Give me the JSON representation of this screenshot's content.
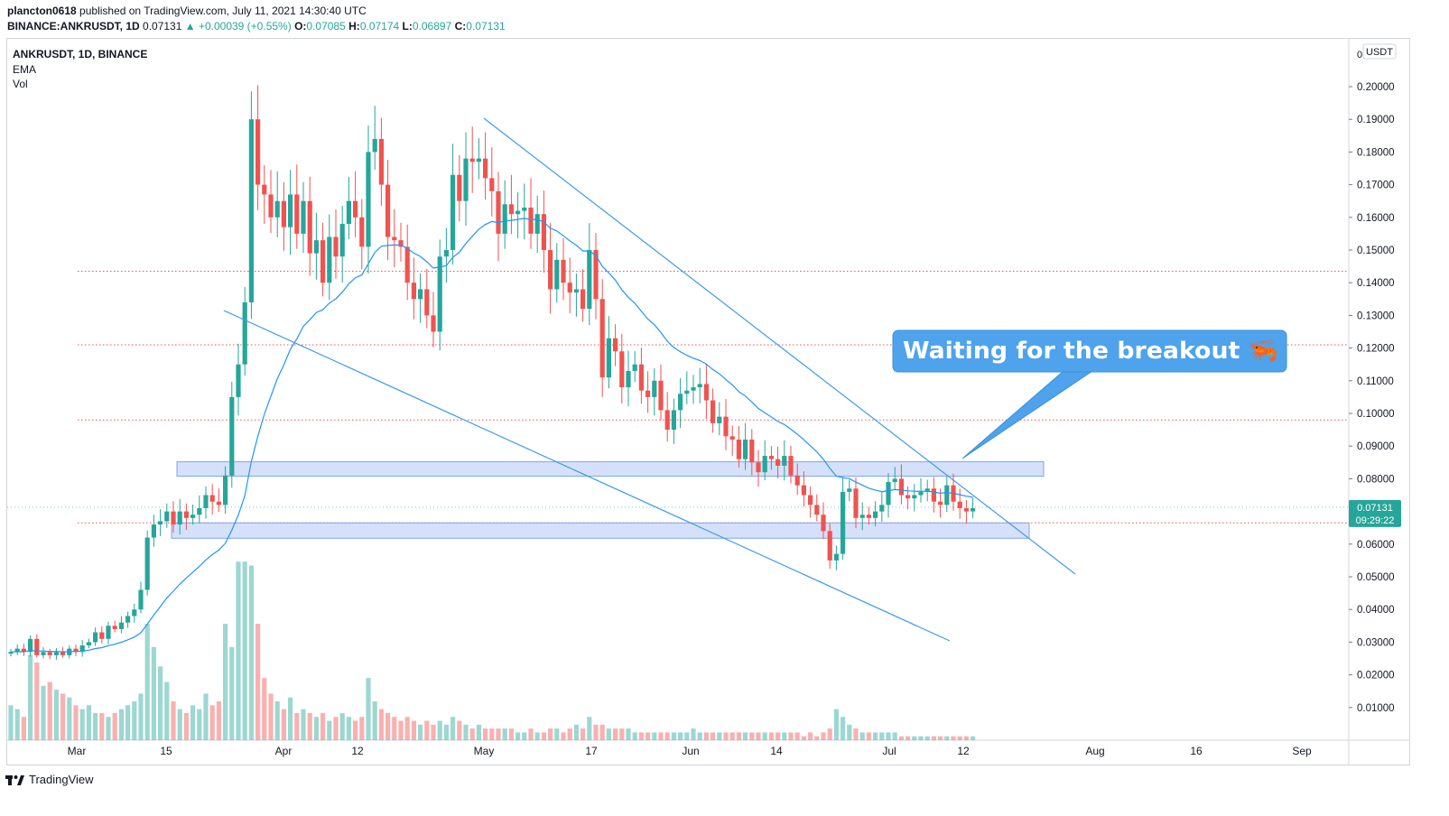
{
  "header": {
    "author": "plancton0618",
    "published_text": "published on TradingView.com, July 11, 2021 14:30:40 UTC",
    "symbol_full": "BINANCE:ANKRUSDT, 1D",
    "last": "0.07131",
    "change": "▲ +0.00039 (+0.55%)",
    "o_label": "O:",
    "o_value": "0.07085",
    "h_label": "H:",
    "h_value": "0.07174",
    "l_label": "L:",
    "l_value": "0.06897",
    "c_label": "C:",
    "c_value": "0.07131"
  },
  "legend": {
    "symbol": "ANKRUSDT, 1D, BINANCE",
    "ema": "EMA",
    "vol": "Vol"
  },
  "price_axis": {
    "currency": "USDT",
    "zero_label": "0",
    "ticks": [
      "0.20000",
      "0.19000",
      "0.18000",
      "0.17000",
      "0.16000",
      "0.15000",
      "0.14000",
      "0.13000",
      "0.12000",
      "0.11000",
      "0.10000",
      "0.09000",
      "0.08000",
      "0.07000",
      "0.06000",
      "0.05000",
      "0.04000",
      "0.03000",
      "0.02000",
      "0.01000"
    ],
    "current_price": "0.07131",
    "countdown": "09:29:22"
  },
  "time_axis": {
    "ticks": [
      "Mar",
      "15",
      "Apr",
      "12",
      "May",
      "17",
      "Jun",
      "14",
      "Jul",
      "12",
      "Aug",
      "16",
      "Sep"
    ]
  },
  "annotation": {
    "text": "Waiting for the breakout 🦐"
  },
  "footer": {
    "brand": "TradingView"
  },
  "colors": {
    "up": "#26a69a",
    "down": "#ef5350",
    "ema": "#2196f3",
    "trendline": "#3d9be9",
    "zone": "#b3c9f5",
    "hline": "#ef5350",
    "callout": "#4ea3ec"
  },
  "chart_data": {
    "type": "candlestick",
    "symbol": "ANKRUSDT",
    "interval": "1D",
    "exchange": "BINANCE",
    "series": [
      {
        "name": "EMA"
      },
      {
        "name": "Vol"
      }
    ],
    "x_ticks": [
      "Mar",
      "15",
      "Apr",
      "12",
      "May",
      "17",
      "Jun",
      "14",
      "Jul",
      "12",
      "Aug",
      "16",
      "Sep"
    ],
    "ylim": [
      0,
      0.21
    ],
    "y_ticks": [
      0.01,
      0.02,
      0.03,
      0.04,
      0.05,
      0.06,
      0.07,
      0.08,
      0.09,
      0.1,
      0.11,
      0.12,
      0.13,
      0.14,
      0.15,
      0.16,
      0.17,
      0.18,
      0.19,
      0.2
    ],
    "resistance_levels": [
      0.1435,
      0.121,
      0.098,
      0.0665
    ],
    "zones": [
      [
        0.0808,
        0.0852
      ],
      [
        0.0618,
        0.0665
      ]
    ],
    "last_close": 0.07131,
    "closes": [
      0.027,
      0.028,
      0.027,
      0.031,
      0.026,
      0.027,
      0.026,
      0.027,
      0.026,
      0.028,
      0.027,
      0.029,
      0.03,
      0.033,
      0.031,
      0.035,
      0.034,
      0.036,
      0.038,
      0.04,
      0.046,
      0.062,
      0.066,
      0.067,
      0.07,
      0.066,
      0.07,
      0.068,
      0.069,
      0.071,
      0.075,
      0.073,
      0.072,
      0.081,
      0.105,
      0.115,
      0.134,
      0.19,
      0.17,
      0.167,
      0.16,
      0.165,
      0.157,
      0.167,
      0.155,
      0.165,
      0.149,
      0.153,
      0.14,
      0.154,
      0.148,
      0.158,
      0.165,
      0.16,
      0.151,
      0.18,
      0.184,
      0.17,
      0.154,
      0.153,
      0.151,
      0.14,
      0.135,
      0.138,
      0.13,
      0.125,
      0.148,
      0.15,
      0.173,
      0.165,
      0.178,
      0.177,
      0.178,
      0.172,
      0.168,
      0.155,
      0.164,
      0.161,
      0.162,
      0.163,
      0.155,
      0.161,
      0.15,
      0.138,
      0.147,
      0.14,
      0.137,
      0.138,
      0.132,
      0.15,
      0.135,
      0.111,
      0.123,
      0.119,
      0.108,
      0.113,
      0.115,
      0.107,
      0.105,
      0.11,
      0.101,
      0.095,
      0.101,
      0.106,
      0.107,
      0.108,
      0.109,
      0.104,
      0.097,
      0.099,
      0.093,
      0.092,
      0.086,
      0.092,
      0.085,
      0.082,
      0.087,
      0.086,
      0.084,
      0.087,
      0.081,
      0.078,
      0.075,
      0.072,
      0.069,
      0.064,
      0.055,
      0.057,
      0.076,
      0.077,
      0.068,
      0.069,
      0.068,
      0.07,
      0.072,
      0.079,
      0.08,
      0.075,
      0.074,
      0.075,
      0.076,
      0.077,
      0.073,
      0.072,
      0.078,
      0.073,
      0.071,
      0.07,
      0.071
    ],
    "volumes": [
      0.009,
      0.008,
      0.006,
      0.022,
      0.02,
      0.014,
      0.015,
      0.013,
      0.012,
      0.011,
      0.009,
      0.008,
      0.009,
      0.007,
      0.007,
      0.006,
      0.007,
      0.008,
      0.009,
      0.01,
      0.012,
      0.03,
      0.024,
      0.019,
      0.015,
      0.01,
      0.008,
      0.007,
      0.009,
      0.008,
      0.012,
      0.009,
      0.01,
      0.03,
      0.024,
      0.046,
      0.046,
      0.045,
      0.03,
      0.016,
      0.012,
      0.01,
      0.008,
      0.011,
      0.007,
      0.008,
      0.007,
      0.006,
      0.007,
      0.005,
      0.006,
      0.007,
      0.006,
      0.005,
      0.006,
      0.016,
      0.01,
      0.008,
      0.007,
      0.006,
      0.005,
      0.006,
      0.005,
      0.004,
      0.005,
      0.004,
      0.005,
      0.004,
      0.006,
      0.005,
      0.004,
      0.003,
      0.004,
      0.003,
      0.003,
      0.003,
      0.003,
      0.003,
      0.002,
      0.002,
      0.003,
      0.002,
      0.002,
      0.003,
      0.003,
      0.002,
      0.003,
      0.004,
      0.003,
      0.006,
      0.004,
      0.004,
      0.003,
      0.003,
      0.003,
      0.003,
      0.002,
      0.002,
      0.002,
      0.002,
      0.002,
      0.002,
      0.002,
      0.002,
      0.002,
      0.003,
      0.002,
      0.002,
      0.002,
      0.002,
      0.002,
      0.002,
      0.002,
      0.002,
      0.002,
      0.002,
      0.002,
      0.002,
      0.002,
      0.002,
      0.002,
      0.002,
      0.001,
      0.002,
      0.001,
      0.002,
      0.003,
      0.008,
      0.006,
      0.004,
      0.003,
      0.002,
      0.002,
      0.002,
      0.002,
      0.002,
      0.002,
      0.001,
      0.001,
      0.001,
      0.001,
      0.001,
      0.001,
      0.001,
      0.001,
      0.001,
      0.001,
      0.001,
      0.001
    ]
  }
}
